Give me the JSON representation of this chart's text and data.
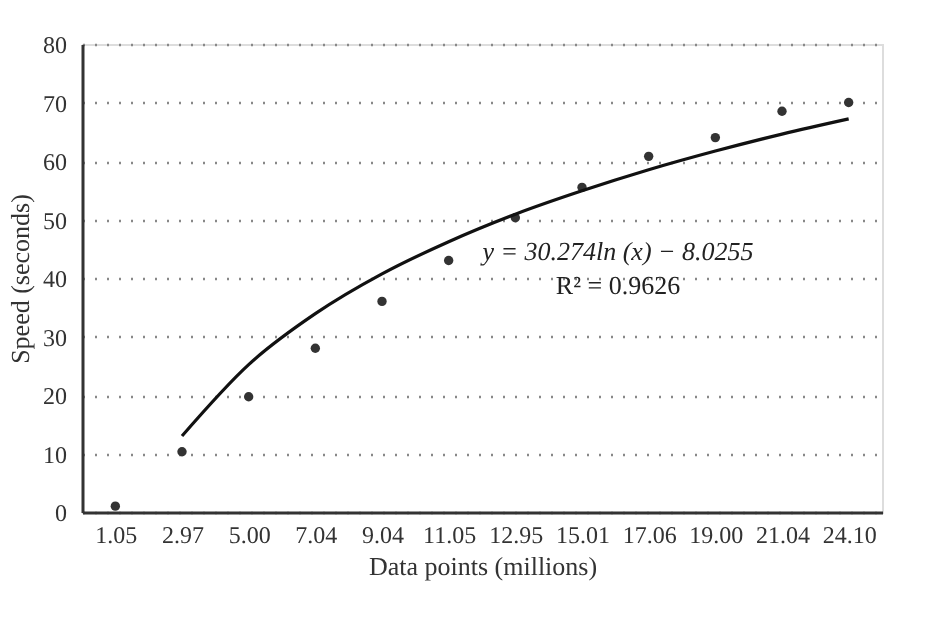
{
  "chart_data": {
    "type": "scatter",
    "xlabel": "Data points (millions)",
    "ylabel": "Speed (seconds)",
    "categories": [
      "1.05",
      "2.97",
      "5.00",
      "7.04",
      "9.04",
      "11.05",
      "12.95",
      "15.01",
      "17.06",
      "19.00",
      "21.04",
      "24.10"
    ],
    "series": [
      {
        "color": "#333333",
        "marker": "circle",
        "values": [
          1.0,
          10.3,
          19.7,
          28.0,
          36.0,
          43.0,
          50.3,
          55.5,
          60.8,
          64.0,
          68.5,
          70.0
        ]
      },
      {
        "type": "line",
        "color": "#111111",
        "line_style": "solid",
        "values": [
          null,
          13.0,
          25.2,
          33.9,
          40.7,
          46.2,
          50.9,
          54.9,
          58.5,
          61.7,
          64.6,
          67.2
        ]
      }
    ],
    "ylim": [
      0,
      80
    ],
    "yticks": [
      0,
      10,
      20,
      30,
      40,
      50,
      60,
      70,
      80
    ],
    "grid": "y",
    "annotations": [
      "y = 30.274ln (x) − 8.0255",
      "R² = 0.9626"
    ]
  }
}
